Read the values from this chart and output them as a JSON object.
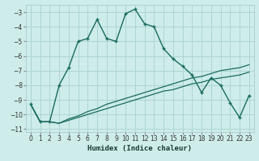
{
  "xlabel": "Humidex (Indice chaleur)",
  "background_color": "#cdecea",
  "grid_color": "#aed6d2",
  "line_color": "#1a6b5e",
  "y_main": [
    -9.3,
    -10.5,
    -10.5,
    -8.0,
    -6.8,
    -5.0,
    -4.8,
    -3.5,
    -4.8,
    -5.0,
    -3.1,
    -2.8,
    -3.8,
    -4.0,
    -5.5,
    -6.2,
    -6.7,
    -7.3,
    -8.5,
    -7.5,
    -8.0,
    -9.2,
    -10.2,
    -8.7
  ],
  "y_line1": [
    -9.3,
    -10.5,
    -10.5,
    -10.6,
    -10.3,
    -10.1,
    -9.8,
    -9.6,
    -9.3,
    -9.1,
    -8.9,
    -8.7,
    -8.5,
    -8.3,
    -8.1,
    -7.9,
    -7.7,
    -7.5,
    -7.4,
    -7.2,
    -7.0,
    -6.9,
    -6.8,
    -6.6
  ],
  "y_line2": [
    -9.3,
    -10.5,
    -10.5,
    -10.6,
    -10.4,
    -10.2,
    -10.0,
    -9.8,
    -9.6,
    -9.4,
    -9.2,
    -9.0,
    -8.8,
    -8.6,
    -8.4,
    -8.3,
    -8.1,
    -7.9,
    -7.8,
    -7.6,
    -7.5,
    -7.4,
    -7.3,
    -7.1
  ],
  "ylim": [
    -11.2,
    -2.5
  ],
  "xlim": [
    -0.5,
    23.5
  ],
  "yticks": [
    -3,
    -4,
    -5,
    -6,
    -7,
    -8,
    -9,
    -10,
    -11
  ],
  "xticks": [
    0,
    1,
    2,
    3,
    4,
    5,
    6,
    7,
    8,
    9,
    10,
    11,
    12,
    13,
    14,
    15,
    16,
    17,
    18,
    19,
    20,
    21,
    22,
    23
  ],
  "tick_labelsize": 5.5,
  "xlabel_fontsize": 6.5
}
